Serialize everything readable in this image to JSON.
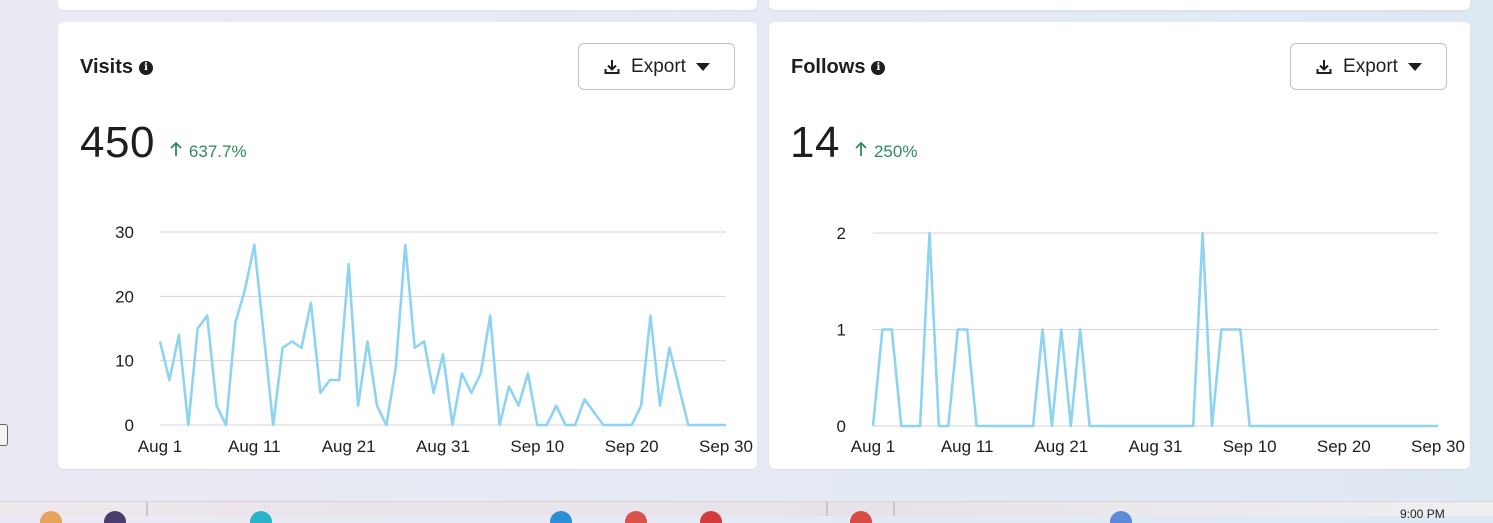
{
  "panels": [
    {
      "title": "Visits",
      "export_label": "Export",
      "value": "450",
      "change": "637.7%",
      "chart_data": {
        "type": "line",
        "title": "",
        "xlabel": "",
        "ylabel": "",
        "x_tick_labels": [
          "Aug 1",
          "Aug 11",
          "Aug 21",
          "Aug 31",
          "Sep 10",
          "Sep 20",
          "Sep 30"
        ],
        "y_ticks": [
          0,
          10,
          20,
          30
        ],
        "ylim": [
          0,
          30
        ],
        "x_start": "Aug 1",
        "x_end": "Sep 30",
        "grid": true,
        "color": "#8ed4f2",
        "values": [
          13,
          7,
          14,
          0,
          15,
          17,
          3,
          0,
          16,
          21,
          28,
          14,
          0,
          12,
          13,
          12,
          19,
          5,
          7,
          7,
          25,
          3,
          13,
          3,
          0,
          9,
          28,
          12,
          13,
          5,
          11,
          0,
          8,
          5,
          8,
          17,
          0,
          6,
          3,
          8,
          0,
          0,
          3,
          0,
          0,
          4,
          2,
          0,
          0,
          0,
          0,
          3,
          17,
          3,
          12,
          6,
          0,
          0,
          0,
          0,
          0
        ]
      }
    },
    {
      "title": "Follows",
      "export_label": "Export",
      "value": "14",
      "change": "250%",
      "chart_data": {
        "type": "line",
        "title": "",
        "xlabel": "",
        "ylabel": "",
        "x_tick_labels": [
          "Aug 1",
          "Aug 11",
          "Aug 21",
          "Aug 31",
          "Sep 10",
          "Sep 20",
          "Sep 30"
        ],
        "y_ticks": [
          0,
          1,
          2
        ],
        "ylim": [
          0,
          2
        ],
        "x_start": "Aug 1",
        "x_end": "Sep 30",
        "grid": true,
        "color": "#8ed4f2",
        "values": [
          0,
          1,
          1,
          0,
          0,
          0,
          2,
          0,
          0,
          1,
          1,
          0,
          0,
          0,
          0,
          0,
          0,
          0,
          1,
          0,
          1,
          0,
          1,
          0,
          0,
          0,
          0,
          0,
          0,
          0,
          0,
          0,
          0,
          0,
          0,
          2,
          0,
          1,
          1,
          1,
          0,
          0,
          0,
          0,
          0,
          0,
          0,
          0,
          0,
          0,
          0,
          0,
          0,
          0,
          0,
          0,
          0,
          0,
          0,
          0,
          0
        ]
      }
    }
  ],
  "taskbar": {
    "time": "9:00 PM"
  }
}
